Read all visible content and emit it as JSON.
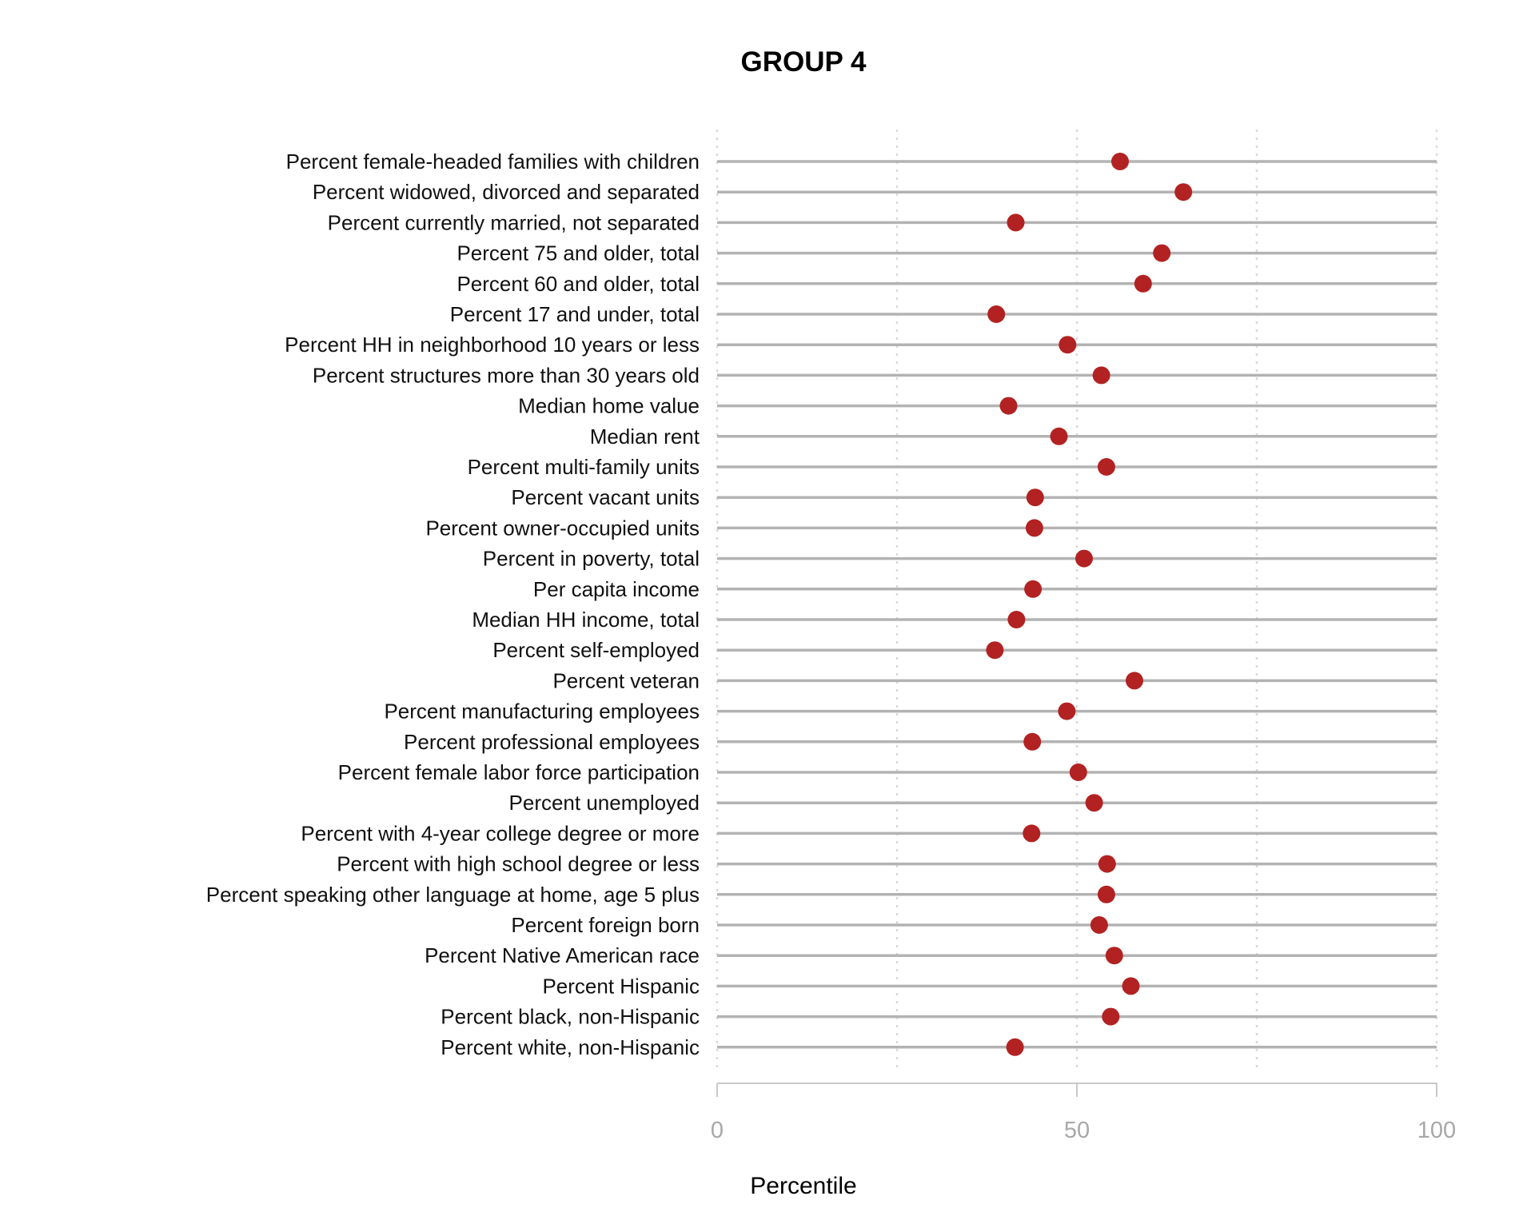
{
  "chart_data": {
    "type": "dot",
    "title": "GROUP 4",
    "xlabel": "Percentile",
    "ylabel": "",
    "xlim": [
      0,
      100
    ],
    "x_ticks": [
      {
        "value": 0,
        "label": "0"
      },
      {
        "value": 50,
        "label": "50"
      },
      {
        "value": 100,
        "label": "100"
      }
    ],
    "grid": {
      "vertical_dotted": [
        0,
        25,
        50,
        75,
        100
      ],
      "horizontal_lines": true
    },
    "point_color": "#b22222",
    "line_color": "#b3b3b3",
    "categories": [
      "Percent female-headed families with children",
      "Percent widowed, divorced and separated",
      "Percent currently married, not separated",
      "Percent 75 and older, total",
      "Percent 60 and older, total",
      "Percent 17 and under, total",
      "Percent HH in neighborhood 10 years or less",
      "Percent structures more than 30 years old",
      "Median home value",
      "Median rent",
      "Percent multi-family units",
      "Percent vacant units",
      "Percent owner-occupied units",
      "Percent in poverty, total",
      "Per capita income",
      "Median HH income, total",
      "Percent self-employed",
      "Percent veteran",
      "Percent manufacturing employees",
      "Percent professional employees",
      "Percent female labor force participation",
      "Percent unemployed",
      "Percent with 4-year college degree or more",
      "Percent with high school degree or less",
      "Percent speaking other language at home, age 5 plus",
      "Percent foreign born",
      "Percent Native American race",
      "Percent Hispanic",
      "Percent black, non-Hispanic",
      "Percent white, non-Hispanic"
    ],
    "values": [
      56,
      64.8,
      41.5,
      61.8,
      59.2,
      38.8,
      48.7,
      53.4,
      40.5,
      47.5,
      54.1,
      44.2,
      44.1,
      51,
      43.9,
      41.6,
      38.6,
      58,
      48.6,
      43.8,
      50.2,
      52.4,
      43.7,
      54.2,
      54.1,
      53.1,
      55.2,
      57.5,
      54.7,
      41.4
    ]
  }
}
